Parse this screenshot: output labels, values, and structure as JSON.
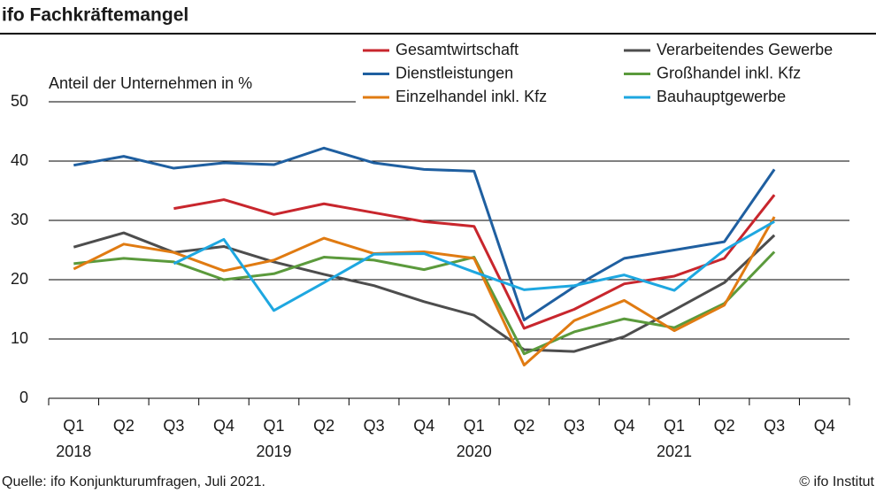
{
  "chart_data": {
    "type": "line",
    "title": "ifo Fachkräftemangel",
    "y_axis_label": "Anteil der Unternehmen in %",
    "categories": [
      "Q1",
      "Q2",
      "Q3",
      "Q4",
      "Q1",
      "Q2",
      "Q3",
      "Q4",
      "Q1",
      "Q2",
      "Q3",
      "Q4",
      "Q1",
      "Q2",
      "Q3",
      "Q4"
    ],
    "years": [
      "2018",
      null,
      null,
      null,
      "2019",
      null,
      null,
      null,
      "2020",
      null,
      null,
      null,
      "2021",
      null,
      null,
      null
    ],
    "ylim": [
      0,
      50
    ],
    "yticks": [
      0,
      10,
      20,
      30,
      40,
      50
    ],
    "grid": true,
    "series": [
      {
        "name": "Gesamtwirtschaft",
        "color": "#c8262d",
        "values": [
          null,
          null,
          32,
          33.5,
          31,
          32.8,
          31.3,
          29.8,
          29,
          11.8,
          15,
          19.3,
          20.6,
          23.6,
          34.3,
          null
        ]
      },
      {
        "name": "Verarbeitendes Gewerbe",
        "color": "#4d4d4d",
        "values": [
          25.5,
          27.9,
          24.6,
          25.6,
          23,
          20.9,
          19,
          16.3,
          14,
          8.2,
          7.9,
          10.4,
          14.9,
          19.5,
          27.5,
          null
        ]
      },
      {
        "name": "Dienstleistungen",
        "color": "#1f5fa0",
        "values": [
          39.3,
          40.8,
          38.8,
          39.7,
          39.4,
          42.2,
          39.7,
          38.6,
          38.3,
          13.2,
          18.8,
          23.6,
          25,
          26.4,
          38.6,
          null
        ]
      },
      {
        "name": "Großhandel inkl. Kfz",
        "color": "#5b9a3c",
        "values": [
          22.7,
          23.6,
          23,
          20,
          21,
          23.8,
          23.3,
          21.7,
          23.8,
          7.5,
          11.2,
          13.4,
          11.9,
          16,
          24.7,
          null
        ]
      },
      {
        "name": "Einzelhandel inkl. Kfz",
        "color": "#e07b12",
        "values": [
          21.8,
          26,
          24.6,
          21.5,
          23.3,
          27,
          24.4,
          24.7,
          23.6,
          5.6,
          13.1,
          16.5,
          11.4,
          15.7,
          30.6,
          null
        ]
      },
      {
        "name": "Bauhauptgewerbe",
        "color": "#1ea7e0",
        "values": [
          null,
          null,
          22.7,
          26.8,
          14.8,
          19.5,
          24.3,
          24.4,
          21.3,
          18.3,
          19,
          20.8,
          18.2,
          25,
          29.8,
          null
        ]
      }
    ],
    "source": "Quelle: ifo Konjunkturumfragen, Juli 2021.",
    "credit": "© ifo Institut"
  }
}
